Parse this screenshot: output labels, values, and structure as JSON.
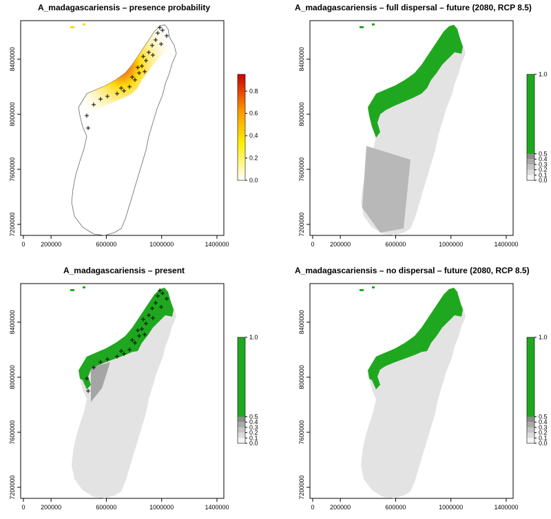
{
  "panels": [
    {
      "title": "A_madagascariensis – presence probability",
      "kind": "probability",
      "legend": [
        "0.0",
        "0.2",
        "0.4",
        "0.6",
        "0.8"
      ],
      "legend_values": [
        0.0,
        0.2,
        0.4,
        0.6,
        0.8
      ],
      "legend_max": 0.95,
      "x_ticks": [
        "0",
        "200000",
        "600000",
        "1000000",
        "1400000"
      ],
      "y_ticks": [
        "7200000",
        "7600000",
        "8000000",
        "8400000"
      ],
      "show_occurrences": true
    },
    {
      "title": "A_madagascariensis – full dispersal – future (2080, RCP 8.5)",
      "kind": "binary",
      "legend": [
        "0.0",
        "0.1",
        "0.2",
        "0.3",
        "0.4",
        "0.5",
        "1.0"
      ],
      "x_ticks": [
        "0",
        "200000",
        "600000",
        "1000000",
        "1400000"
      ],
      "y_ticks": [
        "7200000",
        "7600000",
        "8000000",
        "8400000"
      ],
      "show_occurrences": false
    },
    {
      "title": "A_madagascariensis – present",
      "kind": "binary",
      "legend": [
        "0.0",
        "0.1",
        "0.2",
        "0.3",
        "0.4",
        "0.5",
        "1.0"
      ],
      "x_ticks": [
        "0",
        "200000",
        "600000",
        "1000000",
        "1400000"
      ],
      "y_ticks": [
        "7200000",
        "7600000",
        "8000000",
        "8400000"
      ],
      "show_occurrences": true
    },
    {
      "title": "A_madagascariensis – no dispersal – future (2080, RCP 8.5)",
      "kind": "binary",
      "legend": [
        "0.0",
        "0.1",
        "0.2",
        "0.3",
        "0.4",
        "0.5",
        "1.0"
      ],
      "x_ticks": [
        "0",
        "200000",
        "600000",
        "1000000",
        "1400000"
      ],
      "y_ticks": [
        "7200000",
        "7600000",
        "8000000",
        "8400000"
      ],
      "show_occurrences": false
    }
  ],
  "colors": {
    "suitable": "#1fa81f",
    "land_gray": "#e3e3e3",
    "mid_gray": "#b8b8b8",
    "dark_gray": "#8a8a8a",
    "prob_low": "#ffffff",
    "prob_mid": "#ffd700",
    "prob_high": "#e03010"
  }
}
